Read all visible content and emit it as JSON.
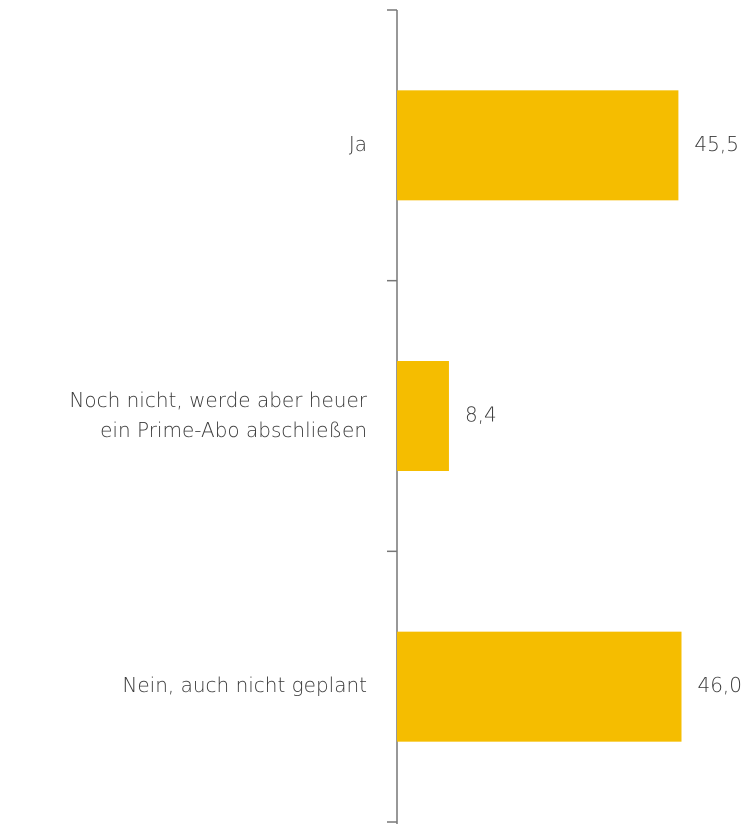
{
  "chart_data": {
    "type": "barh",
    "categories": [
      "Ja",
      "Noch nicht, werde aber heuer\nein Prime-Abo abschließen",
      "Nein, auch nicht geplant"
    ],
    "values": [
      45.5,
      8.4,
      46.0
    ],
    "value_labels": [
      "45,5",
      "8,4",
      "46,0"
    ],
    "color": "#f5bd00",
    "xlim": [
      0,
      57.4
    ]
  }
}
